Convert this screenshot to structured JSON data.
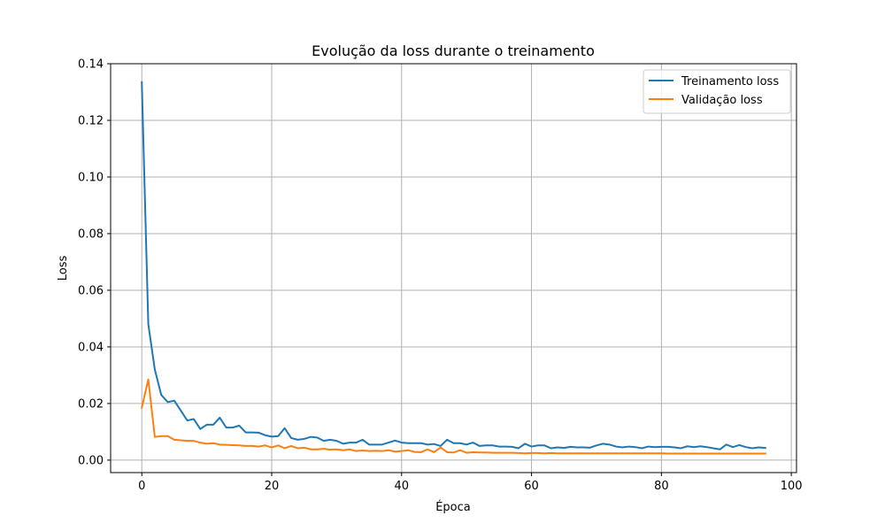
{
  "chart_data": {
    "type": "line",
    "title": "Evolução da loss durante o treinamento",
    "xlabel": "Época",
    "ylabel": "Loss",
    "xlim": [
      -4.8,
      100.8
    ],
    "ylim": [
      -0.0044,
      0.14
    ],
    "xticks": [
      0,
      20,
      40,
      60,
      80,
      100
    ],
    "xtick_labels": [
      "0",
      "20",
      "40",
      "60",
      "80",
      "100"
    ],
    "yticks": [
      0.0,
      0.02,
      0.04,
      0.06,
      0.08,
      0.1,
      0.12,
      0.14
    ],
    "ytick_labels": [
      "0.00",
      "0.02",
      "0.04",
      "0.06",
      "0.08",
      "0.10",
      "0.12",
      "0.14"
    ],
    "grid": true,
    "legend": {
      "position": "top-right"
    },
    "x": [
      0,
      1,
      2,
      3,
      4,
      5,
      6,
      7,
      8,
      9,
      10,
      11,
      12,
      13,
      14,
      15,
      16,
      17,
      18,
      19,
      20,
      21,
      22,
      23,
      24,
      25,
      26,
      27,
      28,
      29,
      30,
      31,
      32,
      33,
      34,
      35,
      36,
      37,
      38,
      39,
      40,
      41,
      42,
      43,
      44,
      45,
      46,
      47,
      48,
      49,
      50,
      51,
      52,
      53,
      54,
      55,
      56,
      57,
      58,
      59,
      60,
      61,
      62,
      63,
      64,
      65,
      66,
      67,
      68,
      69,
      70,
      71,
      72,
      73,
      74,
      75,
      76,
      77,
      78,
      79,
      80,
      81,
      82,
      83,
      84,
      85,
      86,
      87,
      88,
      89,
      90,
      91,
      92,
      93,
      94,
      95,
      96
    ],
    "series": [
      {
        "name": "Treinamento loss",
        "color": "#1f77b4",
        "values": [
          0.1335,
          0.048,
          0.032,
          0.023,
          0.0205,
          0.021,
          0.0175,
          0.014,
          0.0145,
          0.011,
          0.0125,
          0.0125,
          0.015,
          0.0115,
          0.0115,
          0.0122,
          0.0098,
          0.0098,
          0.0097,
          0.0088,
          0.0083,
          0.0085,
          0.0113,
          0.0078,
          0.0072,
          0.0075,
          0.0082,
          0.008,
          0.0068,
          0.0072,
          0.0068,
          0.0058,
          0.0062,
          0.0062,
          0.0072,
          0.0055,
          0.0055,
          0.0055,
          0.0062,
          0.0069,
          0.0062,
          0.006,
          0.006,
          0.006,
          0.0055,
          0.0057,
          0.005,
          0.0072,
          0.006,
          0.006,
          0.0055,
          0.0062,
          0.005,
          0.0052,
          0.0052,
          0.0048,
          0.0048,
          0.0047,
          0.0042,
          0.0058,
          0.0048,
          0.0052,
          0.0052,
          0.0042,
          0.0045,
          0.0043,
          0.0047,
          0.0045,
          0.0045,
          0.0044,
          0.0052,
          0.0058,
          0.0055,
          0.0048,
          0.0045,
          0.0048,
          0.0046,
          0.0042,
          0.0048,
          0.0046,
          0.0047,
          0.0047,
          0.0045,
          0.0042,
          0.0049,
          0.0046,
          0.0049,
          0.0046,
          0.0042,
          0.0038,
          0.0055,
          0.0046,
          0.0053,
          0.0046,
          0.0042,
          0.0045,
          0.0043
        ]
      },
      {
        "name": "Validação loss",
        "color": "#ff7f0e",
        "values": [
          0.0185,
          0.0285,
          0.0082,
          0.0085,
          0.0085,
          0.0072,
          0.007,
          0.0068,
          0.0068,
          0.0062,
          0.0058,
          0.006,
          0.0055,
          0.0054,
          0.0053,
          0.0052,
          0.005,
          0.005,
          0.0048,
          0.0052,
          0.0045,
          0.0052,
          0.0042,
          0.005,
          0.0042,
          0.0044,
          0.0038,
          0.0038,
          0.004,
          0.0037,
          0.0038,
          0.0035,
          0.0038,
          0.0032,
          0.0034,
          0.0032,
          0.0033,
          0.0032,
          0.0035,
          0.003,
          0.0032,
          0.0035,
          0.0029,
          0.0028,
          0.0038,
          0.0028,
          0.0045,
          0.0028,
          0.0027,
          0.0035,
          0.0026,
          0.0028,
          0.0027,
          0.0027,
          0.0026,
          0.0026,
          0.0026,
          0.0026,
          0.0025,
          0.0024,
          0.0025,
          0.0025,
          0.0024,
          0.0025,
          0.0024,
          0.0024,
          0.0024,
          0.0024,
          0.0024,
          0.0024,
          0.0024,
          0.0024,
          0.0024,
          0.0024,
          0.0024,
          0.0024,
          0.0024,
          0.0024,
          0.0024,
          0.0024,
          0.0024,
          0.0023,
          0.0023,
          0.0023,
          0.0023,
          0.0023,
          0.0023,
          0.0023,
          0.0023,
          0.0023,
          0.0023,
          0.0023,
          0.0023,
          0.0023,
          0.0023,
          0.0023,
          0.0023
        ]
      }
    ]
  }
}
